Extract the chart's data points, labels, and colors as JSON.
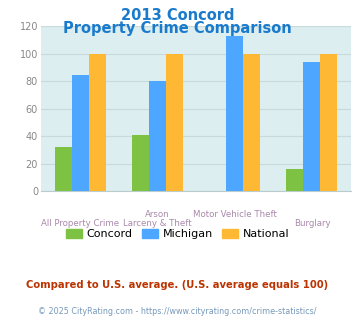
{
  "title_line1": "2013 Concord",
  "title_line2": "Property Crime Comparison",
  "cat_labels_row1": [
    "All Property Crime",
    "Arson",
    "Motor Vehicle Theft",
    "Burglary"
  ],
  "cat_labels_row2": [
    "",
    "Larceny & Theft",
    "",
    ""
  ],
  "cat_label_stagger": [
    1,
    0,
    0,
    1
  ],
  "concord": [
    32,
    41,
    0,
    16
  ],
  "michigan": [
    85,
    80,
    113,
    94
  ],
  "national": [
    100,
    100,
    100,
    100
  ],
  "concord_color": "#7dc242",
  "michigan_color": "#4da6ff",
  "national_color": "#ffb833",
  "ylim": [
    0,
    120
  ],
  "yticks": [
    0,
    20,
    40,
    60,
    80,
    100,
    120
  ],
  "background_color": "#ddeef0",
  "title_color": "#1a7acc",
  "xlabel_color": "#aa88aa",
  "footer_text": "Compared to U.S. average. (U.S. average equals 100)",
  "footer_color": "#bb3300",
  "credit_text": "© 2025 CityRating.com - https://www.cityrating.com/crime-statistics/",
  "credit_color": "#7799bb",
  "legend_labels": [
    "Concord",
    "Michigan",
    "National"
  ],
  "bar_width": 0.22
}
